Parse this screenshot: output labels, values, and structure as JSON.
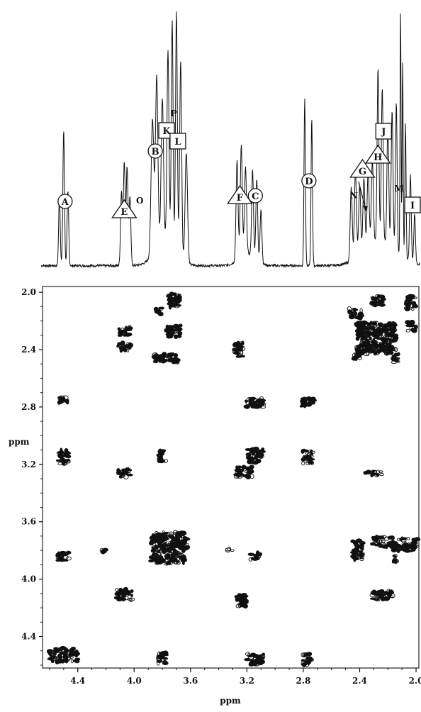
{
  "chart_data": {
    "type": "scatter",
    "subtype": "2D COSY NMR spectrum with 1D projection",
    "xlabel": "ppm",
    "ylabel": "ppm",
    "xlim": [
      4.65,
      1.98
    ],
    "ylim": [
      1.96,
      4.62
    ],
    "x_ticks": [
      "4.4",
      "4.0",
      "3.6",
      "3.2",
      "2.8",
      "2.4",
      "2.0"
    ],
    "x_tick_values": [
      4.4,
      4.0,
      3.6,
      3.2,
      2.8,
      2.4,
      2.0
    ],
    "y_ticks": [
      "2.0",
      "2.4",
      "2.8",
      "3.2",
      "3.6",
      "4.0",
      "4.4"
    ],
    "y_tick_values": [
      2.0,
      2.4,
      2.8,
      3.2,
      3.6,
      4.0,
      4.4
    ],
    "peak_labels": [
      {
        "label": "A",
        "shape": "circle",
        "ppm": 4.49
      },
      {
        "label": "E",
        "shape": "triangle",
        "ppm": 4.07
      },
      {
        "label": "O",
        "shape": "none",
        "ppm": 3.96
      },
      {
        "label": "B",
        "shape": "circle",
        "ppm": 3.85
      },
      {
        "label": "K",
        "shape": "square",
        "ppm": 3.77
      },
      {
        "label": "P",
        "shape": "none",
        "ppm": 3.72
      },
      {
        "label": "L",
        "shape": "square",
        "ppm": 3.69
      },
      {
        "label": "F",
        "shape": "triangle",
        "ppm": 3.25
      },
      {
        "label": "C",
        "shape": "circle",
        "ppm": 3.14
      },
      {
        "label": "D",
        "shape": "circle",
        "ppm": 2.76
      },
      {
        "label": "G",
        "shape": "triangle",
        "ppm": 2.38
      },
      {
        "label": "N",
        "shape": "none",
        "ppm": 2.44
      },
      {
        "label": "J",
        "shape": "square",
        "ppm": 2.23
      },
      {
        "label": "H",
        "shape": "triangle",
        "ppm": 2.27
      },
      {
        "label": "M",
        "shape": "none",
        "ppm": 2.12
      },
      {
        "label": "I",
        "shape": "square",
        "ppm": 2.02
      }
    ],
    "spectrum_peaks": [
      {
        "ppm": 4.53,
        "height": 0.28,
        "width": 0.008
      },
      {
        "ppm": 4.5,
        "height": 0.55,
        "width": 0.008
      },
      {
        "ppm": 4.47,
        "height": 0.3,
        "width": 0.008
      },
      {
        "ppm": 4.09,
        "height": 0.3,
        "width": 0.009
      },
      {
        "ppm": 4.07,
        "height": 0.42,
        "width": 0.009
      },
      {
        "ppm": 4.05,
        "height": 0.4,
        "width": 0.009
      },
      {
        "ppm": 4.03,
        "height": 0.28,
        "width": 0.009
      },
      {
        "ppm": 3.87,
        "height": 0.55,
        "width": 0.014
      },
      {
        "ppm": 3.84,
        "height": 0.7,
        "width": 0.012
      },
      {
        "ppm": 3.8,
        "height": 0.58,
        "width": 0.012
      },
      {
        "ppm": 3.76,
        "height": 0.78,
        "width": 0.01
      },
      {
        "ppm": 3.73,
        "height": 0.92,
        "width": 0.009
      },
      {
        "ppm": 3.7,
        "height": 0.98,
        "width": 0.009
      },
      {
        "ppm": 3.67,
        "height": 0.8,
        "width": 0.01
      },
      {
        "ppm": 3.63,
        "height": 0.45,
        "width": 0.012
      },
      {
        "ppm": 3.27,
        "height": 0.4,
        "width": 0.01
      },
      {
        "ppm": 3.24,
        "height": 0.45,
        "width": 0.01
      },
      {
        "ppm": 3.21,
        "height": 0.35,
        "width": 0.01
      },
      {
        "ppm": 3.16,
        "height": 0.35,
        "width": 0.009
      },
      {
        "ppm": 3.13,
        "height": 0.33,
        "width": 0.009
      },
      {
        "ppm": 3.1,
        "height": 0.22,
        "width": 0.009
      },
      {
        "ppm": 2.79,
        "height": 0.68,
        "width": 0.007
      },
      {
        "ppm": 2.74,
        "height": 0.6,
        "width": 0.007
      },
      {
        "ppm": 2.46,
        "height": 0.3,
        "width": 0.01
      },
      {
        "ppm": 2.43,
        "height": 0.36,
        "width": 0.01
      },
      {
        "ppm": 2.4,
        "height": 0.28,
        "width": 0.01
      },
      {
        "ppm": 2.37,
        "height": 0.3,
        "width": 0.01
      },
      {
        "ppm": 2.34,
        "height": 0.32,
        "width": 0.01
      },
      {
        "ppm": 2.31,
        "height": 0.34,
        "width": 0.01
      },
      {
        "ppm": 2.27,
        "height": 0.7,
        "width": 0.009
      },
      {
        "ppm": 2.24,
        "height": 0.62,
        "width": 0.009
      },
      {
        "ppm": 2.2,
        "height": 0.5,
        "width": 0.009
      },
      {
        "ppm": 2.17,
        "height": 0.55,
        "width": 0.009
      },
      {
        "ppm": 2.14,
        "height": 0.6,
        "width": 0.008
      },
      {
        "ppm": 2.11,
        "height": 1.0,
        "width": 0.005
      },
      {
        "ppm": 2.095,
        "height": 0.8,
        "width": 0.005
      },
      {
        "ppm": 2.075,
        "height": 0.55,
        "width": 0.006
      },
      {
        "ppm": 2.04,
        "height": 0.35,
        "width": 0.008
      },
      {
        "ppm": 2.01,
        "height": 0.2,
        "width": 0.008
      }
    ],
    "cross_peaks": [
      {
        "x": 4.5,
        "y": 2.75,
        "w": 0.07,
        "h": 0.05
      },
      {
        "x": 4.5,
        "y": 3.15,
        "w": 0.07,
        "h": 0.1
      },
      {
        "x": 4.5,
        "y": 3.84,
        "w": 0.08,
        "h": 0.06
      },
      {
        "x": 4.5,
        "y": 4.53,
        "w": 0.2,
        "h": 0.1
      },
      {
        "x": 4.07,
        "y": 2.27,
        "w": 0.09,
        "h": 0.07
      },
      {
        "x": 4.07,
        "y": 2.38,
        "w": 0.09,
        "h": 0.06
      },
      {
        "x": 4.07,
        "y": 3.26,
        "w": 0.09,
        "h": 0.06
      },
      {
        "x": 4.07,
        "y": 4.11,
        "w": 0.11,
        "h": 0.08
      },
      {
        "x": 3.82,
        "y": 2.13,
        "w": 0.05,
        "h": 0.05
      },
      {
        "x": 3.72,
        "y": 2.06,
        "w": 0.09,
        "h": 0.1
      },
      {
        "x": 3.72,
        "y": 2.27,
        "w": 0.1,
        "h": 0.08
      },
      {
        "x": 3.77,
        "y": 2.46,
        "w": 0.18,
        "h": 0.06
      },
      {
        "x": 3.8,
        "y": 3.14,
        "w": 0.05,
        "h": 0.08
      },
      {
        "x": 3.75,
        "y": 3.78,
        "w": 0.26,
        "h": 0.22
      },
      {
        "x": 3.8,
        "y": 4.55,
        "w": 0.06,
        "h": 0.08
      },
      {
        "x": 4.22,
        "y": 3.8,
        "w": 0.04,
        "h": 0.02
      },
      {
        "x": 3.26,
        "y": 2.4,
        "w": 0.07,
        "h": 0.1
      },
      {
        "x": 3.22,
        "y": 3.25,
        "w": 0.11,
        "h": 0.08
      },
      {
        "x": 3.14,
        "y": 2.77,
        "w": 0.13,
        "h": 0.06
      },
      {
        "x": 3.14,
        "y": 3.14,
        "w": 0.11,
        "h": 0.1
      },
      {
        "x": 3.32,
        "y": 3.8,
        "w": 0.04,
        "h": 0.02
      },
      {
        "x": 3.14,
        "y": 3.84,
        "w": 0.07,
        "h": 0.05
      },
      {
        "x": 3.24,
        "y": 4.15,
        "w": 0.07,
        "h": 0.09
      },
      {
        "x": 3.14,
        "y": 4.56,
        "w": 0.12,
        "h": 0.08
      },
      {
        "x": 2.77,
        "y": 2.77,
        "w": 0.09,
        "h": 0.06
      },
      {
        "x": 2.77,
        "y": 3.15,
        "w": 0.08,
        "h": 0.1
      },
      {
        "x": 2.77,
        "y": 4.56,
        "w": 0.07,
        "h": 0.08
      },
      {
        "x": 2.43,
        "y": 2.15,
        "w": 0.09,
        "h": 0.07
      },
      {
        "x": 2.28,
        "y": 2.32,
        "w": 0.28,
        "h": 0.22
      },
      {
        "x": 2.42,
        "y": 2.45,
        "w": 0.06,
        "h": 0.06
      },
      {
        "x": 2.27,
        "y": 2.06,
        "w": 0.09,
        "h": 0.07
      },
      {
        "x": 2.04,
        "y": 2.07,
        "w": 0.07,
        "h": 0.1
      },
      {
        "x": 2.03,
        "y": 2.24,
        "w": 0.06,
        "h": 0.07
      },
      {
        "x": 2.14,
        "y": 2.46,
        "w": 0.05,
        "h": 0.06
      },
      {
        "x": 2.3,
        "y": 3.26,
        "w": 0.12,
        "h": 0.03
      },
      {
        "x": 2.41,
        "y": 3.8,
        "w": 0.08,
        "h": 0.14
      },
      {
        "x": 2.24,
        "y": 3.74,
        "w": 0.14,
        "h": 0.07
      },
      {
        "x": 2.08,
        "y": 3.76,
        "w": 0.18,
        "h": 0.09
      },
      {
        "x": 2.14,
        "y": 3.86,
        "w": 0.04,
        "h": 0.05
      },
      {
        "x": 2.24,
        "y": 4.11,
        "w": 0.15,
        "h": 0.07
      }
    ]
  }
}
